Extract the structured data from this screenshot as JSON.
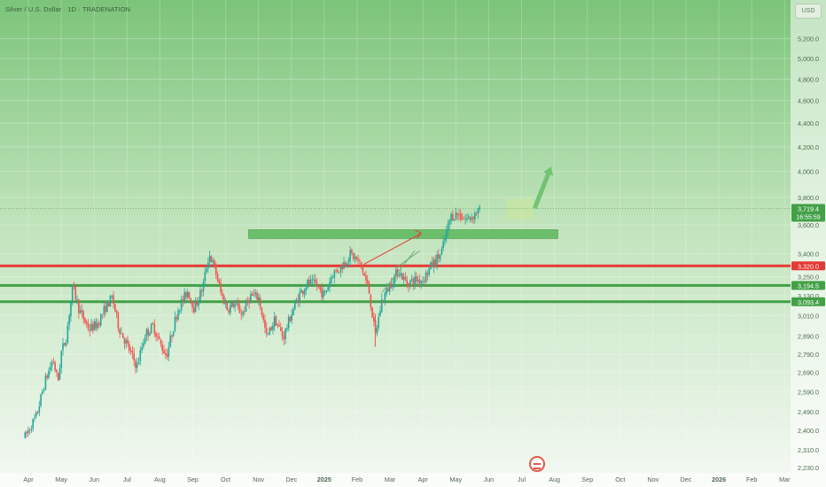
{
  "header": {
    "title": "Silver / U.S. Dollar · 1D · TRADENATION",
    "currency": "USD"
  },
  "chart_data": {
    "type": "candlestick",
    "title": "Silver / U.S. Dollar · 1D · TRADENATION",
    "ylim": [
      2230,
      5400
    ],
    "y_scale": "log",
    "y_ticks": [
      {
        "value": 5200,
        "label": "5,200.0"
      },
      {
        "value": 5000,
        "label": "5,000.0"
      },
      {
        "value": 4800,
        "label": "4,800.0"
      },
      {
        "value": 4600,
        "label": "4,600.0"
      },
      {
        "value": 4400,
        "label": "4,400.0"
      },
      {
        "value": 4200,
        "label": "4,200.0"
      },
      {
        "value": 4000,
        "label": "4,000.0"
      },
      {
        "value": 3800,
        "label": "3,800.0"
      },
      {
        "value": 3600,
        "label": "3,600.0"
      },
      {
        "value": 3400,
        "label": "3,400.0"
      },
      {
        "value": 3250,
        "label": "3,250.0"
      },
      {
        "value": 3130,
        "label": "3,130.0"
      },
      {
        "value": 3010,
        "label": "3,010.0"
      },
      {
        "value": 2890,
        "label": "2,890.0"
      },
      {
        "value": 2790,
        "label": "2,790.0"
      },
      {
        "value": 2690,
        "label": "2,690.0"
      },
      {
        "value": 2590,
        "label": "2,590.0"
      },
      {
        "value": 2490,
        "label": "2,490.0"
      },
      {
        "value": 2400,
        "label": "2,400.0"
      },
      {
        "value": 2310,
        "label": "2,310.0"
      },
      {
        "value": 2230,
        "label": "2,230.0"
      }
    ],
    "x_ticks": [
      {
        "t": 0,
        "label": "Apr",
        "bold": false
      },
      {
        "t": 1,
        "label": "May",
        "bold": false
      },
      {
        "t": 2,
        "label": "Jun",
        "bold": false
      },
      {
        "t": 3,
        "label": "Jul",
        "bold": false
      },
      {
        "t": 4,
        "label": "Aug",
        "bold": false
      },
      {
        "t": 5,
        "label": "Sep",
        "bold": false
      },
      {
        "t": 6,
        "label": "Oct",
        "bold": false
      },
      {
        "t": 7,
        "label": "Nov",
        "bold": false
      },
      {
        "t": 8,
        "label": "Dec",
        "bold": false
      },
      {
        "t": 9,
        "label": "2025",
        "bold": true
      },
      {
        "t": 10,
        "label": "Feb",
        "bold": false
      },
      {
        "t": 11,
        "label": "Mar",
        "bold": false
      },
      {
        "t": 12,
        "label": "Apr",
        "bold": false
      },
      {
        "t": 13,
        "label": "May",
        "bold": false
      },
      {
        "t": 14,
        "label": "Jun",
        "bold": false
      },
      {
        "t": 15,
        "label": "Jul",
        "bold": false
      },
      {
        "t": 16,
        "label": "Aug",
        "bold": false
      },
      {
        "t": 17,
        "label": "Sep",
        "bold": false
      },
      {
        "t": 18,
        "label": "Oct",
        "bold": false
      },
      {
        "t": 19,
        "label": "Nov",
        "bold": false
      },
      {
        "t": 20,
        "label": "Dec",
        "bold": false
      },
      {
        "t": 21,
        "label": "2026",
        "bold": true
      },
      {
        "t": 22,
        "label": "Feb",
        "bold": false
      },
      {
        "t": 23,
        "label": "Mar",
        "bold": false
      }
    ],
    "anchors": [
      [
        -0.1,
        2370
      ],
      [
        0.25,
        2470
      ],
      [
        0.5,
        2640
      ],
      [
        0.75,
        2760
      ],
      [
        0.9,
        2640
      ],
      [
        1.0,
        2800
      ],
      [
        1.15,
        2880
      ],
      [
        1.35,
        3190
      ],
      [
        1.55,
        3040
      ],
      [
        1.85,
        2930
      ],
      [
        2.1,
        2960
      ],
      [
        2.35,
        3060
      ],
      [
        2.55,
        3120
      ],
      [
        2.75,
        2940
      ],
      [
        3.0,
        2840
      ],
      [
        3.3,
        2720
      ],
      [
        3.55,
        2900
      ],
      [
        3.8,
        2950
      ],
      [
        4.0,
        2850
      ],
      [
        4.2,
        2780
      ],
      [
        4.55,
        3050
      ],
      [
        4.85,
        3160
      ],
      [
        5.05,
        3050
      ],
      [
        5.3,
        3180
      ],
      [
        5.5,
        3400
      ],
      [
        5.7,
        3280
      ],
      [
        5.85,
        3150
      ],
      [
        6.05,
        3050
      ],
      [
        6.25,
        3080
      ],
      [
        6.5,
        3020
      ],
      [
        6.75,
        3130
      ],
      [
        7.0,
        3120
      ],
      [
        7.25,
        2880
      ],
      [
        7.5,
        2990
      ],
      [
        7.75,
        2880
      ],
      [
        8.0,
        3020
      ],
      [
        8.25,
        3140
      ],
      [
        8.5,
        3210
      ],
      [
        8.75,
        3200
      ],
      [
        9.0,
        3130
      ],
      [
        9.25,
        3270
      ],
      [
        9.5,
        3310
      ],
      [
        9.8,
        3400
      ],
      [
        10.1,
        3330
      ],
      [
        10.35,
        3170
      ],
      [
        10.55,
        2890
      ],
      [
        10.75,
        3100
      ],
      [
        11.0,
        3200
      ],
      [
        11.25,
        3290
      ],
      [
        11.5,
        3210
      ],
      [
        11.75,
        3230
      ],
      [
        12.0,
        3230
      ],
      [
        12.25,
        3320
      ],
      [
        12.55,
        3400
      ],
      [
        12.85,
        3660
      ],
      [
        13.05,
        3680
      ],
      [
        13.3,
        3640
      ],
      [
        13.5,
        3660
      ],
      [
        13.65,
        3700
      ],
      [
        13.75,
        3700
      ]
    ],
    "levels": [
      {
        "value": 3320.0,
        "label": "3,320.0",
        "color": "#e53935"
      },
      {
        "value": 3194.5,
        "label": "3,194.5",
        "color": "#43a047"
      },
      {
        "value": 3093.4,
        "label": "3,093.4",
        "color": "#43a047"
      }
    ],
    "last_price": {
      "value": 3719.4,
      "label": "3,719.4",
      "countdown": "16:55:59",
      "color": "#43a047"
    },
    "resistance_zone": {
      "x0": 6.7,
      "x1": 16.1,
      "y_low": 3505,
      "y_high": 3565,
      "color": "#5cb85c"
    },
    "consolidation_box": {
      "x0": 14.55,
      "x1": 15.35,
      "y_low": 3640,
      "y_high": 3790,
      "color": "#c8e6a0"
    },
    "target_arrow": {
      "x0": 15.4,
      "y0": 3720,
      "x1": 15.9,
      "y1": 4040,
      "color": "#6cc06c"
    },
    "trend_arrow": {
      "x0": 10.2,
      "y0": 3330,
      "x1": 11.95,
      "y1": 3540,
      "color": "#e53935"
    },
    "channel_lines": [
      {
        "x0": 10.75,
        "y0": 3150,
        "x1": 11.75,
        "y1": 3420
      },
      {
        "x0": 11.2,
        "y0": 3310,
        "x1": 11.9,
        "y1": 3420
      }
    ],
    "colors": {
      "up": "#26a69a",
      "down": "#ef5350",
      "grid": "#dfe9dc",
      "bg_top": "#7cc47a",
      "bg_bottom": "#f2f8f1"
    }
  }
}
